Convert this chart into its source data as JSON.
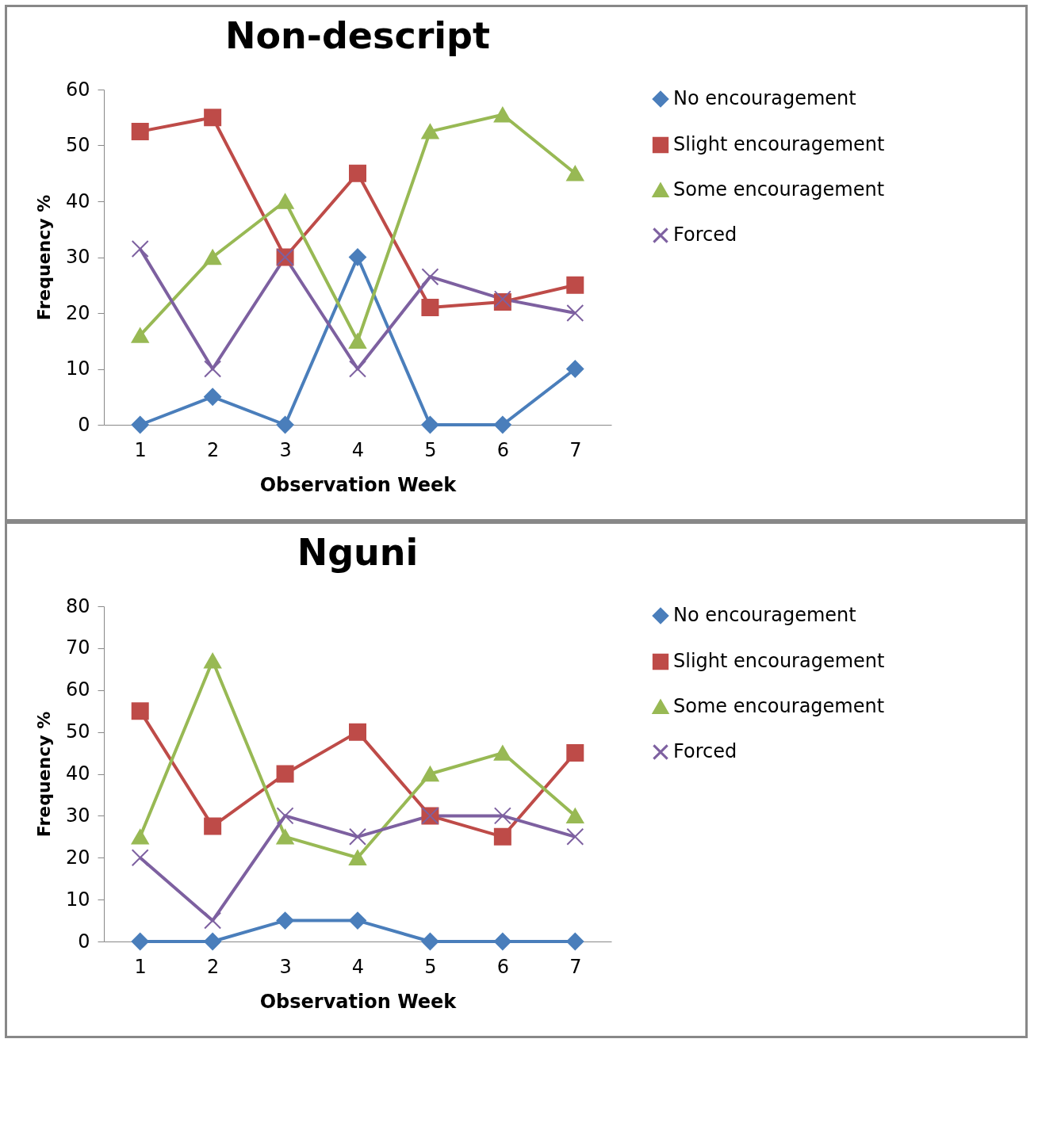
{
  "chart_data": [
    {
      "type": "line",
      "title": "Non-descript",
      "xlabel": "Observation Week",
      "ylabel": "Frequency %",
      "categories": [
        "1",
        "2",
        "3",
        "4",
        "5",
        "6",
        "7"
      ],
      "ylim": [
        0,
        60
      ],
      "yticks": [
        0,
        10,
        20,
        30,
        40,
        50,
        60
      ],
      "grid": false,
      "legend": "right",
      "series": [
        {
          "name": "No encouragement",
          "color": "#4a7ebb",
          "marker": "diamond",
          "values": [
            0,
            5,
            0,
            30,
            0,
            0,
            10
          ]
        },
        {
          "name": "Slight encouragement",
          "color": "#be4b48",
          "marker": "square",
          "values": [
            52.5,
            55,
            30,
            45,
            21,
            22,
            25
          ]
        },
        {
          "name": "Some encouragement",
          "color": "#98b954",
          "marker": "triangle",
          "values": [
            16,
            30,
            40,
            15,
            52.5,
            55.5,
            45
          ]
        },
        {
          "name": "Forced",
          "color": "#7d60a0",
          "marker": "cross",
          "values": [
            31.5,
            10,
            30,
            10,
            26.5,
            22.5,
            20
          ]
        }
      ]
    },
    {
      "type": "line",
      "title": "Nguni",
      "xlabel": "Observation Week",
      "ylabel": "Frequency %",
      "categories": [
        "1",
        "2",
        "3",
        "4",
        "5",
        "6",
        "7"
      ],
      "ylim": [
        0,
        80
      ],
      "yticks": [
        0,
        10,
        20,
        30,
        40,
        50,
        60,
        70,
        80
      ],
      "grid": false,
      "legend": "right",
      "series": [
        {
          "name": "No encouragement",
          "color": "#4a7ebb",
          "marker": "diamond",
          "values": [
            0,
            0,
            5,
            5,
            0,
            0,
            0
          ]
        },
        {
          "name": "Slight encouragement",
          "color": "#be4b48",
          "marker": "square",
          "values": [
            55,
            27.5,
            40,
            50,
            30,
            25,
            45
          ]
        },
        {
          "name": "Some encouragement",
          "color": "#98b954",
          "marker": "triangle",
          "values": [
            25,
            67,
            25,
            20,
            40,
            45,
            30
          ]
        },
        {
          "name": "Forced",
          "color": "#7d60a0",
          "marker": "cross",
          "values": [
            20,
            5,
            30,
            25,
            30,
            30,
            25
          ]
        }
      ]
    }
  ]
}
